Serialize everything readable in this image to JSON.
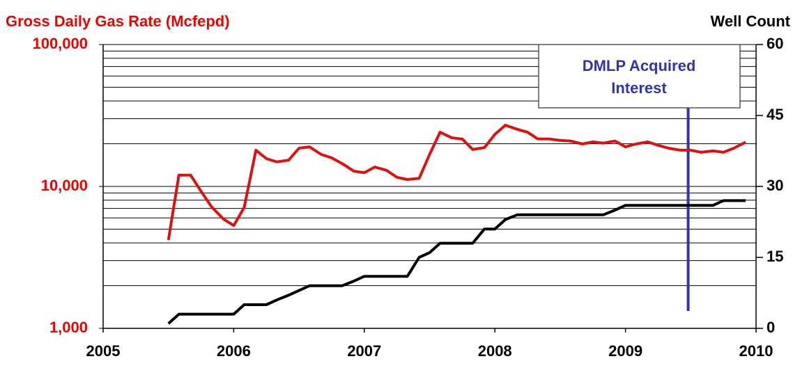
{
  "chart_data": {
    "type": "line",
    "y_label": "Gross Daily Gas Rate (Mcfepd)",
    "y2_label": "Well Count",
    "y_color": "#ee0000",
    "y2_color": "#000000",
    "log_y": true,
    "grid": true,
    "xlim": [
      2005,
      2010
    ],
    "xticks": [
      2005,
      2006,
      2007,
      2008,
      2009,
      2010
    ],
    "ylim": [
      1000,
      100000
    ],
    "yticks": [
      {
        "value": 1000,
        "label": "1,000"
      },
      {
        "value": 10000,
        "label": "10,000"
      },
      {
        "value": 100000,
        "label": "100,000"
      }
    ],
    "minor_yticks": [
      2000,
      3000,
      4000,
      5000,
      6000,
      7000,
      8000,
      9000,
      20000,
      30000,
      40000,
      50000,
      60000,
      70000,
      80000,
      90000
    ],
    "y2lim": [
      0,
      60
    ],
    "y2ticks": [
      0,
      15,
      30,
      45,
      60
    ],
    "x": [
      2005.5,
      2005.58,
      2005.67,
      2005.75,
      2005.83,
      2005.92,
      2006,
      2006.08,
      2006.17,
      2006.25,
      2006.33,
      2006.42,
      2006.5,
      2006.58,
      2006.67,
      2006.75,
      2006.83,
      2006.92,
      2007,
      2007.08,
      2007.17,
      2007.25,
      2007.33,
      2007.42,
      2007.5,
      2007.58,
      2007.67,
      2007.75,
      2007.83,
      2007.92,
      2008,
      2008.08,
      2008.17,
      2008.25,
      2008.33,
      2008.42,
      2008.5,
      2008.58,
      2008.67,
      2008.75,
      2008.83,
      2008.92,
      2009,
      2009.08,
      2009.17,
      2009.25,
      2009.33,
      2009.42,
      2009.5,
      2009.58,
      2009.67,
      2009.75,
      2009.83,
      2009.92
    ],
    "series": [
      {
        "color": "#dd1111",
        "axis": "y",
        "values": [
          4200,
          12000,
          12000,
          9250,
          7200,
          5900,
          5300,
          7100,
          18000,
          15700,
          14900,
          15300,
          18600,
          19000,
          16800,
          15900,
          14500,
          12800,
          12500,
          13700,
          13000,
          11600,
          11200,
          11400,
          16800,
          24100,
          22000,
          21600,
          18200,
          18800,
          23300,
          27000,
          25300,
          24100,
          21600,
          21600,
          21100,
          20900,
          19900,
          20600,
          20200,
          20900,
          19000,
          19900,
          20600,
          19500,
          18600,
          18000,
          18000,
          17400,
          17800,
          17400,
          18600,
          20500
        ]
      },
      {
        "color": "#000000",
        "axis": "y2",
        "values": [
          1,
          3,
          3,
          3,
          3,
          3,
          3,
          5,
          5,
          5,
          6,
          7,
          8,
          9,
          9,
          9,
          9,
          10,
          11,
          11,
          11,
          11,
          11,
          15,
          16,
          18,
          18,
          18,
          18,
          21,
          21,
          23,
          24,
          24,
          24,
          24,
          24,
          24,
          24,
          24,
          24,
          25,
          26,
          26,
          26,
          26,
          26,
          26,
          26,
          26,
          26,
          27,
          27,
          27
        ]
      }
    ],
    "annotation": {
      "lines": [
        "DMLP Acquired",
        "Interest"
      ],
      "x": 2009.48,
      "color": "#3333aa"
    }
  }
}
